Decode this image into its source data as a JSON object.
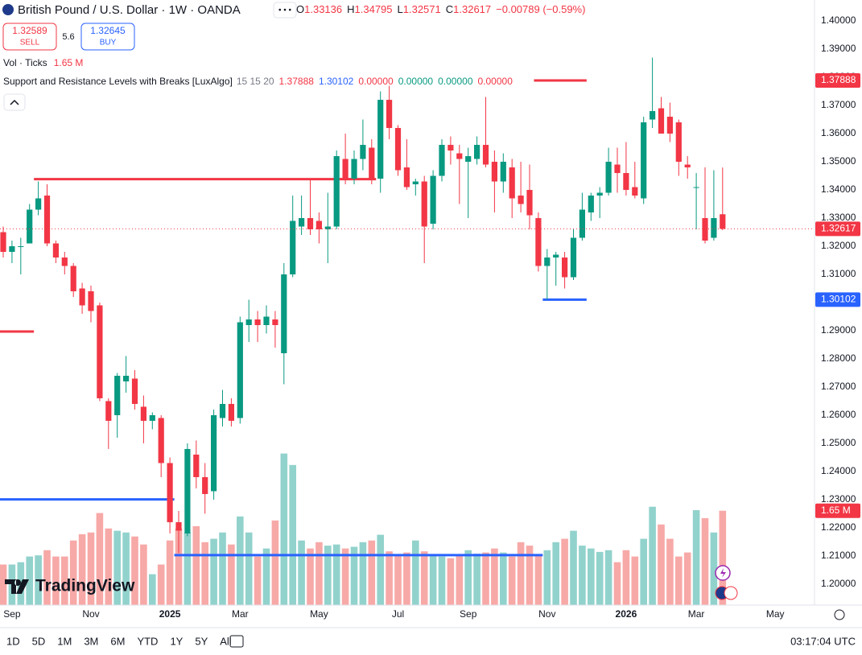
{
  "header": {
    "symbol": "British Pound / U.S. Dollar · 1W · OANDA",
    "ohlc": [
      {
        "label": "O",
        "value": "1.33136"
      },
      {
        "label": "H",
        "value": "1.34795"
      },
      {
        "label": "L",
        "value": "1.32571"
      },
      {
        "label": "C",
        "value": "1.32617"
      }
    ],
    "change": "−0.00789 (−0.59%)",
    "sell": {
      "price": "1.32589",
      "label": "SELL"
    },
    "spread": "5.6",
    "buy": {
      "price": "1.32645",
      "label": "BUY"
    },
    "vol_legend": {
      "name": "Vol · Ticks",
      "value": "1.65 M"
    },
    "indicator": {
      "name": "Support and Resistance Levels with Breaks [LuxAlgo]",
      "params": "15 15 20",
      "values": [
        {
          "text": "1.37888",
          "color": "#f23645"
        },
        {
          "text": "1.30102",
          "color": "#2962ff"
        },
        {
          "text": "0.00000",
          "color": "#f23645"
        },
        {
          "text": "0.00000",
          "color": "#089981"
        },
        {
          "text": "0.00000",
          "color": "#089981"
        },
        {
          "text": "0.00000",
          "color": "#f23645"
        }
      ]
    }
  },
  "chart_data": {
    "type": "candlestick",
    "up_color": "#089981",
    "down_color": "#f23645",
    "vol_up_color": "#92d2cc",
    "vol_down_color": "#f7a9a7",
    "grid": false,
    "categories": [
      null,
      "Sep",
      null,
      null,
      null,
      null,
      null,
      null,
      null,
      null,
      "Nov",
      null,
      null,
      null,
      null,
      null,
      null,
      null,
      null,
      "2025",
      null,
      null,
      null,
      null,
      null,
      null,
      null,
      "Mar",
      null,
      null,
      null,
      null,
      null,
      null,
      null,
      null,
      "May",
      null,
      null,
      null,
      null,
      null,
      null,
      null,
      null,
      "Jul",
      null,
      null,
      null,
      null,
      null,
      null,
      null,
      "Sep",
      null,
      null,
      null,
      null,
      null,
      null,
      null,
      null,
      "Nov",
      null,
      null,
      null,
      null,
      null,
      null,
      null,
      null,
      "2026",
      null,
      null,
      null,
      null,
      null,
      null,
      null,
      "Mar",
      null,
      null,
      null,
      null,
      null,
      null,
      null,
      null,
      "May"
    ],
    "open": [
      1.325,
      1.318,
      1.32,
      1.321,
      1.333,
      1.338,
      1.321,
      1.316,
      1.313,
      1.305,
      1.304,
      1.299,
      1.265,
      1.26,
      1.272,
      1.273,
      1.263,
      1.258,
      1.259,
      1.243,
      1.222,
      1.218,
      1.246,
      1.238,
      1.233,
      1.259,
      1.264,
      1.259,
      1.292,
      1.294,
      1.292,
      1.294,
      1.282,
      1.31,
      1.327,
      1.33,
      1.329,
      1.326,
      1.327,
      1.351,
      1.344,
      1.351,
      1.355,
      1.344,
      1.372,
      1.362,
      1.348,
      1.342,
      1.343,
      1.328,
      1.345,
      1.356,
      1.353,
      1.35,
      1.351,
      1.356,
      1.35,
      1.343,
      1.348,
      1.338,
      1.34,
      1.33,
      1.313,
      1.316,
      1.316,
      1.309,
      1.323,
      1.332,
      1.338,
      1.339,
      1.349,
      1.346,
      1.341,
      1.337,
      1.365,
      1.369,
      1.366,
      1.364,
      1.349,
      1.341,
      1.33,
      1.323,
      1.33136,
      null,
      null,
      null,
      null,
      null,
      null
    ],
    "high": [
      1.327,
      1.322,
      1.323,
      1.335,
      1.343,
      1.342,
      1.322,
      1.318,
      1.314,
      1.307,
      1.306,
      1.3,
      1.266,
      1.275,
      1.281,
      1.276,
      1.267,
      1.261,
      1.26,
      1.245,
      1.226,
      1.25,
      1.251,
      1.243,
      1.262,
      1.269,
      1.266,
      1.295,
      1.301,
      1.297,
      1.299,
      1.297,
      1.314,
      1.338,
      1.338,
      1.344,
      1.332,
      1.339,
      1.354,
      1.36,
      1.354,
      1.365,
      1.358,
      1.375,
      1.377,
      1.363,
      1.358,
      1.344,
      1.345,
      1.347,
      1.358,
      1.359,
      1.356,
      1.355,
      1.359,
      1.373,
      1.354,
      1.353,
      1.351,
      1.35,
      1.349,
      1.332,
      1.319,
      1.318,
      1.318,
      1.326,
      1.339,
      1.339,
      1.341,
      1.355,
      1.355,
      1.357,
      1.35,
      1.366,
      1.387,
      1.373,
      1.371,
      1.365,
      1.352,
      1.346,
      1.348,
      1.347,
      1.34795,
      null,
      null,
      null,
      null,
      null,
      null
    ],
    "low": [
      1.316,
      1.314,
      1.31,
      1.321,
      1.331,
      1.32,
      1.314,
      1.31,
      1.302,
      1.296,
      1.293,
      1.265,
      1.248,
      1.252,
      1.268,
      1.262,
      1.25,
      1.255,
      1.238,
      1.218,
      1.211,
      1.217,
      1.234,
      1.225,
      1.23,
      1.256,
      1.256,
      1.257,
      1.286,
      1.286,
      1.289,
      1.284,
      1.271,
      1.309,
      1.324,
      1.324,
      1.321,
      1.314,
      1.326,
      1.342,
      1.342,
      1.347,
      1.342,
      1.339,
      1.358,
      1.345,
      1.34,
      1.338,
      1.314,
      1.326,
      1.343,
      1.349,
      1.335,
      1.33,
      1.349,
      1.348,
      1.332,
      1.339,
      1.33,
      1.332,
      1.326,
      1.311,
      1.301,
      1.306,
      1.305,
      1.308,
      1.322,
      1.329,
      1.33,
      1.338,
      1.339,
      1.338,
      1.337,
      1.335,
      1.362,
      1.36,
      1.357,
      1.345,
      1.344,
      1.326,
      1.321,
      1.322,
      1.32571,
      null,
      null,
      null,
      null,
      null,
      null
    ],
    "close": [
      1.318,
      1.32,
      1.32,
      1.333,
      1.337,
      1.321,
      1.316,
      1.313,
      1.304,
      1.299,
      1.297,
      1.266,
      1.258,
      1.274,
      1.274,
      1.264,
      1.258,
      1.26,
      1.243,
      1.222,
      1.219,
      1.248,
      1.238,
      1.232,
      1.26,
      1.264,
      1.258,
      1.293,
      1.294,
      1.292,
      1.295,
      1.292,
      1.31,
      1.329,
      1.33,
      1.326,
      1.326,
      1.327,
      1.352,
      1.344,
      1.351,
      1.356,
      1.344,
      1.372,
      1.362,
      1.347,
      1.341,
      1.343,
      1.327,
      1.345,
      1.356,
      1.354,
      1.351,
      1.352,
      1.356,
      1.349,
      1.343,
      1.35,
      1.337,
      1.335,
      1.331,
      1.313,
      1.316,
      1.317,
      1.309,
      1.323,
      1.333,
      1.338,
      1.339,
      1.35,
      1.346,
      1.34,
      1.338,
      1.364,
      1.368,
      1.36,
      1.36,
      1.35,
      1.348,
      1.341,
      1.322,
      1.33,
      1.32617,
      null,
      null,
      null,
      null,
      null,
      null
    ],
    "volume": [
      0.71,
      0.71,
      0.75,
      0.85,
      0.87,
      0.96,
      0.85,
      0.85,
      1.13,
      1.24,
      1.27,
      1.61,
      1.34,
      1.3,
      1.27,
      1.2,
      1.06,
      0.54,
      0.71,
      1.13,
      1.34,
      1.27,
      1.38,
      1.1,
      1.16,
      1.27,
      1.06,
      1.55,
      1.27,
      0.85,
      0.99,
      1.48,
      2.65,
      2.45,
      1.13,
      0.99,
      1.1,
      1.04,
      1.06,
      0.99,
      1.02,
      1.1,
      1.13,
      1.23,
      0.94,
      0.89,
      0.92,
      1.13,
      0.94,
      0.87,
      0.85,
      0.82,
      0.87,
      0.96,
      0.9,
      0.92,
      0.99,
      0.92,
      0.85,
      1.1,
      1.04,
      0.87,
      0.96,
      1.1,
      1.16,
      1.3,
      1.04,
      0.99,
      0.93,
      0.96,
      0.75,
      0.96,
      0.85,
      1.16,
      1.72,
      1.41,
      1.16,
      0.85,
      0.92,
      1.66,
      1.52,
      1.27,
      1.65,
      null,
      null,
      null,
      null,
      null,
      null
    ],
    "ylim": [
      1.19255,
      1.40745
    ],
    "vol_ylim": [
      0,
      10.58
    ],
    "yticks": [
      {
        "value": 1.4,
        "label": "1.40000"
      },
      {
        "value": 1.39,
        "label": "1.39000"
      },
      {
        "value": 1.38,
        "label": "1.38000"
      },
      {
        "value": 1.37,
        "label": "1.37000"
      },
      {
        "value": 1.36,
        "label": "1.36000"
      },
      {
        "value": 1.35,
        "label": "1.35000"
      },
      {
        "value": 1.34,
        "label": "1.34000"
      },
      {
        "value": 1.33,
        "label": "1.33000"
      },
      {
        "value": 1.32,
        "label": "1.32000"
      },
      {
        "value": 1.31,
        "label": "1.31000"
      },
      {
        "value": 1.3,
        "label": "1.30000"
      },
      {
        "value": 1.29,
        "label": "1.29000"
      },
      {
        "value": 1.28,
        "label": "1.28000"
      },
      {
        "value": 1.27,
        "label": "1.27000"
      },
      {
        "value": 1.26,
        "label": "1.26000"
      },
      {
        "value": 1.25,
        "label": "1.25000"
      },
      {
        "value": 1.24,
        "label": "1.24000"
      },
      {
        "value": 1.23,
        "label": "1.23000"
      },
      {
        "value": 1.22,
        "label": "1.22000"
      },
      {
        "value": 1.21,
        "label": "1.21000"
      },
      {
        "value": 1.2,
        "label": "1.20000"
      }
    ],
    "levels": [
      {
        "value": 1.2897,
        "color": "#f23645",
        "start": 0,
        "end": 3
      },
      {
        "value": 1.34384,
        "color": "#f23645",
        "start": 4,
        "end": 42
      },
      {
        "value": 1.37888,
        "color": "#f23645",
        "start": 61,
        "end": 66
      },
      {
        "value": 1.2301,
        "color": "#2962ff",
        "start": 0,
        "end": 19
      },
      {
        "value": 1.2103,
        "color": "#2962ff",
        "start": 20,
        "end": 61
      },
      {
        "value": 1.30102,
        "color": "#2962ff",
        "start": 62,
        "end": 66
      }
    ],
    "price_labels": [
      {
        "value": 1.37888,
        "label": "1.37888",
        "color": "#f23645"
      },
      {
        "value": 1.32617,
        "label": "1.32617",
        "color": "#f23645",
        "line": true
      },
      {
        "value": 1.30102,
        "label": "1.30102",
        "color": "#2962ff"
      }
    ],
    "vol_label": {
      "value": 1.65,
      "label": "1.65 M",
      "color": "#f23645"
    }
  },
  "brand": "TradingView",
  "toolbar": {
    "ranges": [
      "1D",
      "5D",
      "1M",
      "3M",
      "6M",
      "YTD",
      "1Y",
      "5Y",
      "All"
    ],
    "clock": "03:17:04 UTC"
  }
}
